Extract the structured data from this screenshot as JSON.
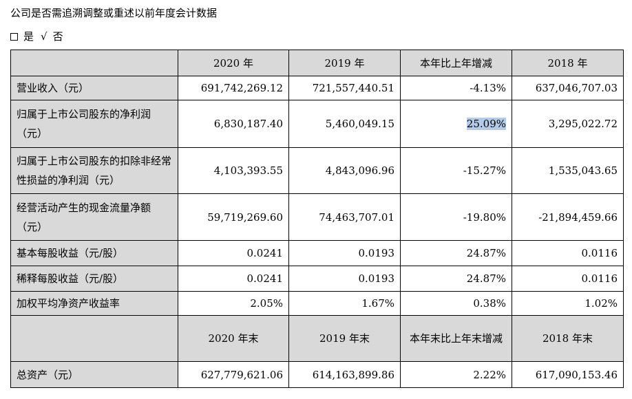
{
  "heading": "公司是否需追溯调整或重述以前年度会计数据",
  "choice": {
    "yes_label": "是",
    "check_mark": "√",
    "no_label": "否"
  },
  "header1": [
    "",
    "2020 年",
    "2019 年",
    "本年比上年增减",
    "2018 年"
  ],
  "rows1": [
    {
      "label": "营业收入（元）",
      "v2020": "691,742,269.12",
      "v2019": "721,557,440.51",
      "change": "-4.13%",
      "v2018": "637,046,707.03"
    },
    {
      "label": "归属于上市公司股东的净利润（元）",
      "v2020": "6,830,187.40",
      "v2019": "5,460,049.15",
      "change": "25.09%",
      "v2018": "3,295,022.72"
    },
    {
      "label": "归属于上市公司股东的扣除非经常性损益的净利润（元）",
      "v2020": "4,103,393.55",
      "v2019": "4,843,096.96",
      "change": "-15.27%",
      "v2018": "1,535,043.65"
    },
    {
      "label": "经营活动产生的现金流量净额（元）",
      "v2020": "59,719,269.60",
      "v2019": "74,463,707.01",
      "change": "-19.80%",
      "v2018": "-21,894,459.66"
    },
    {
      "label": "基本每股收益（元/股）",
      "v2020": "0.0241",
      "v2019": "0.0193",
      "change": "24.87%",
      "v2018": "0.0116"
    },
    {
      "label": "稀释每股收益（元/股）",
      "v2020": "0.0241",
      "v2019": "0.0193",
      "change": "24.87%",
      "v2018": "0.0116"
    },
    {
      "label": "加权平均净资产收益率",
      "v2020": "2.05%",
      "v2019": "1.67%",
      "change": "0.38%",
      "v2018": "1.02%"
    }
  ],
  "header2": [
    "",
    "2020 年末",
    "2019 年末",
    "本年末比上年末增减",
    "2018 年末"
  ],
  "rows2": [
    {
      "label": "总资产（元）",
      "v2020": "627,779,621.06",
      "v2019": "614,163,899.86",
      "change": "2.22%",
      "v2018": "617,090,153.46"
    }
  ]
}
